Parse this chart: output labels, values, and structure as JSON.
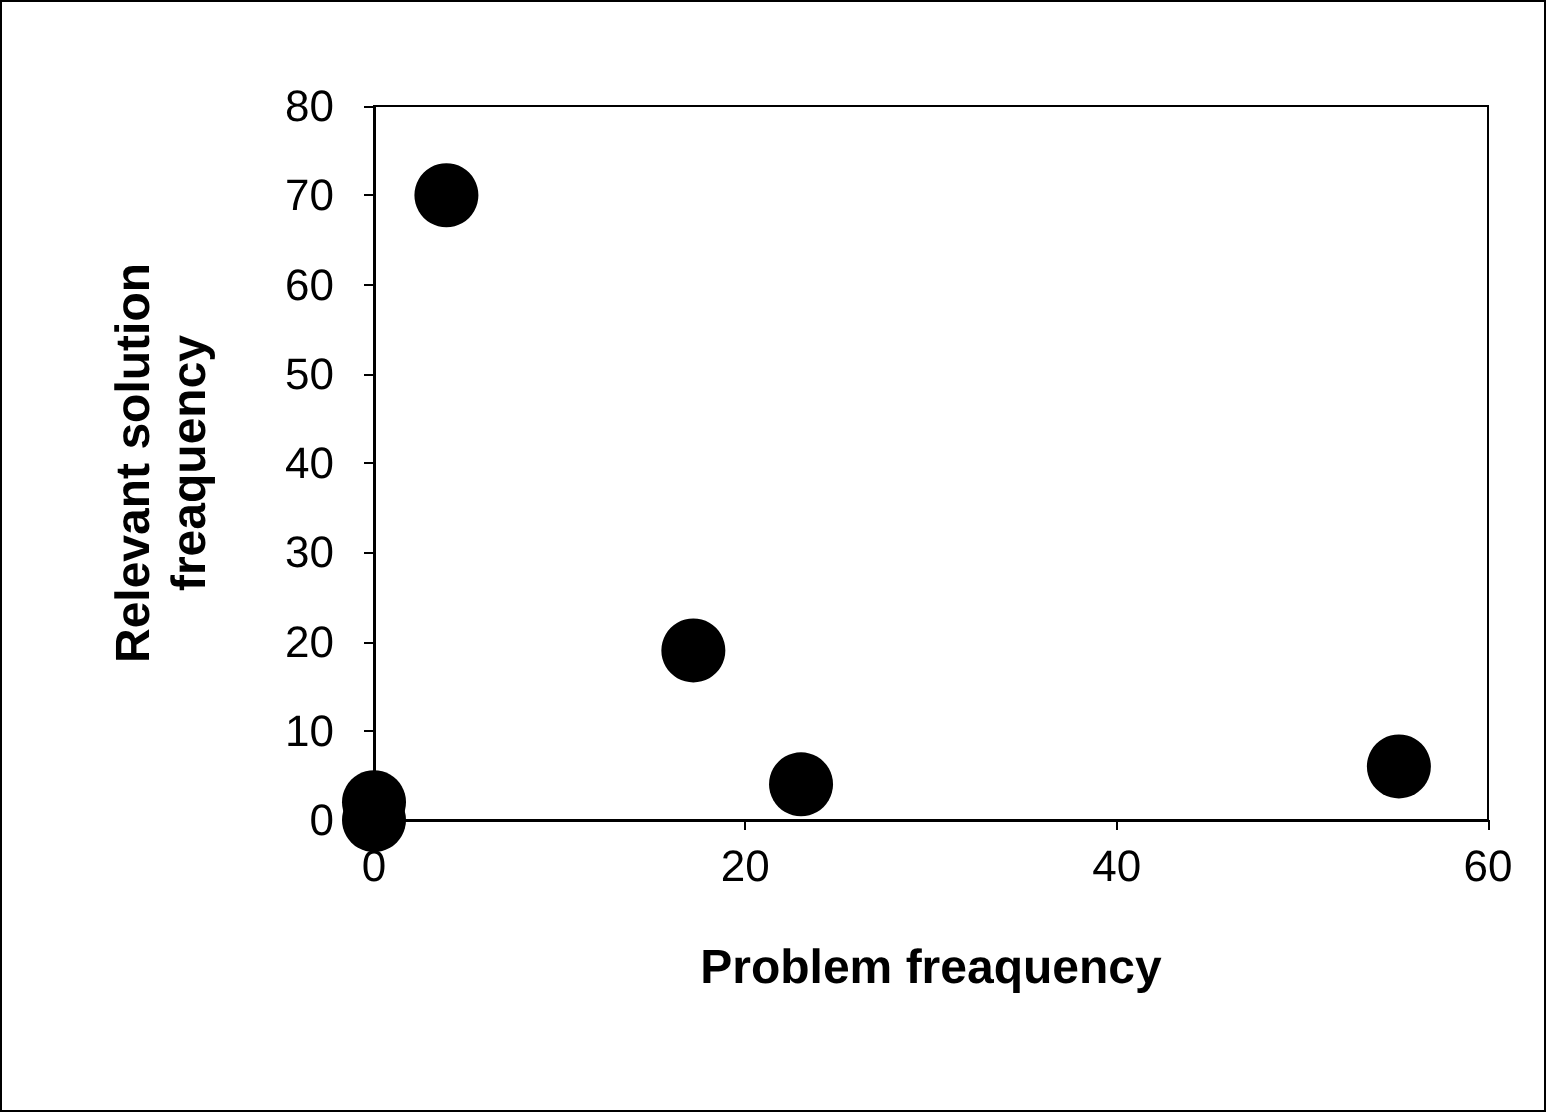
{
  "chart_data": {
    "type": "scatter",
    "xlabel": "Problem freaquency",
    "ylabel": "Relevant solution freaquency",
    "x": [
      3.9,
      17.2,
      23,
      55.2,
      0,
      0
    ],
    "series": [
      {
        "color": "#000000",
        "values": [
          70,
          19,
          4,
          6,
          2,
          0
        ]
      }
    ],
    "xlim": [
      0,
      60
    ],
    "xticks": [
      0,
      20,
      40,
      60
    ],
    "ylim": [
      0,
      80
    ],
    "yticks": [
      0,
      10,
      20,
      30,
      40,
      50,
      60,
      70,
      80
    ],
    "grid": false,
    "marker": "circle"
  }
}
